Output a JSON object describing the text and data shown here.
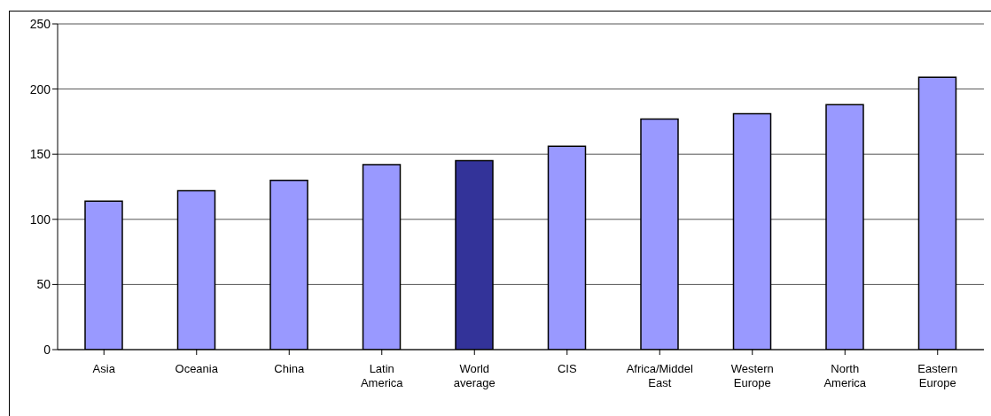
{
  "chart_data": {
    "type": "bar",
    "categories": [
      "Asia",
      "Oceania",
      "China",
      "Latin America",
      "World average",
      "CIS",
      "Africa/Middel East",
      "Western Europe",
      "North America",
      "Eastern Europe"
    ],
    "values": [
      114,
      122,
      130,
      142,
      145,
      156,
      177,
      181,
      188,
      209
    ],
    "colors": [
      "#9999ff",
      "#9999ff",
      "#9999ff",
      "#9999ff",
      "#333399",
      "#9999ff",
      "#9999ff",
      "#9999ff",
      "#9999ff",
      "#9999ff"
    ],
    "ylim": [
      0,
      250
    ],
    "yticks": [
      0,
      50,
      100,
      150,
      200,
      250
    ],
    "grid": "y"
  }
}
